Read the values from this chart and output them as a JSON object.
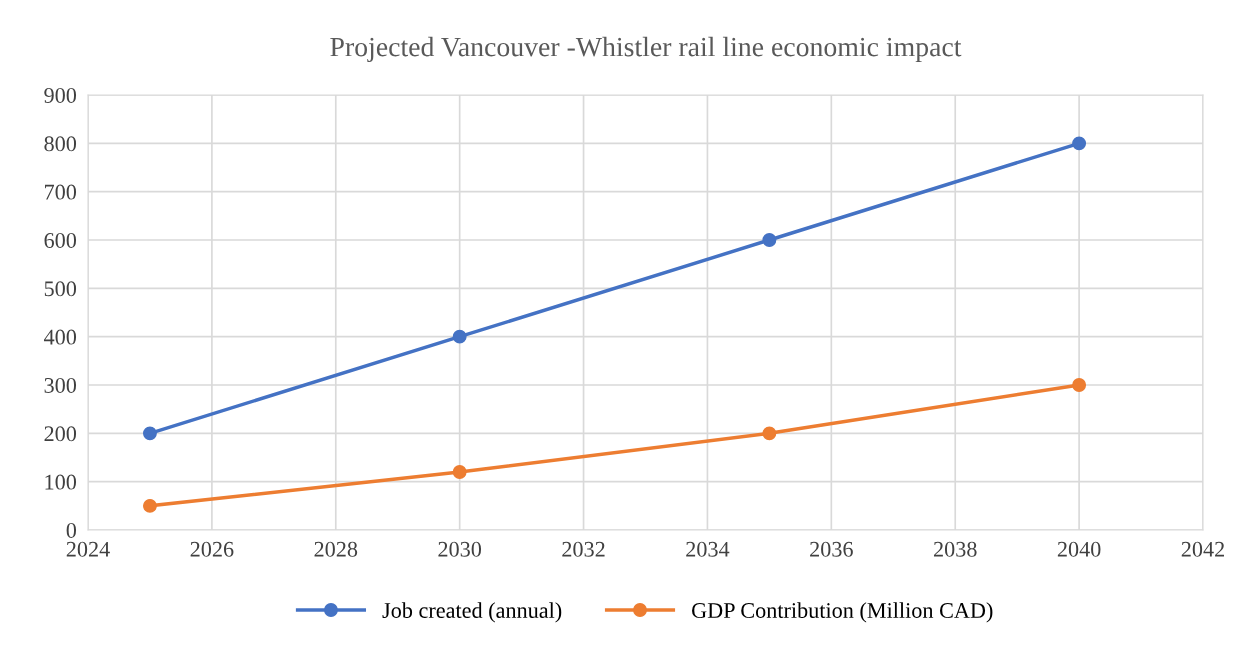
{
  "chart_data": {
    "type": "line",
    "title": "Projected Vancouver -Whistler rail line economic impact",
    "x": [
      2025,
      2030,
      2035,
      2040
    ],
    "series": [
      {
        "name": "Job created (annual)",
        "color": "#4472c4",
        "values": [
          200,
          400,
          600,
          800
        ]
      },
      {
        "name": "GDP Contribution (Million CAD)",
        "color": "#ed7d31",
        "values": [
          50,
          120,
          200,
          300
        ]
      }
    ],
    "xlim": [
      2024,
      2042
    ],
    "xticks": [
      2024,
      2026,
      2028,
      2030,
      2032,
      2034,
      2036,
      2038,
      2040,
      2042
    ],
    "ylim": [
      0,
      900
    ],
    "yticks": [
      0,
      100,
      200,
      300,
      400,
      500,
      600,
      700,
      800,
      900
    ],
    "grid": true,
    "legend": "bottom",
    "marker": "circle",
    "line_style": "solid"
  }
}
